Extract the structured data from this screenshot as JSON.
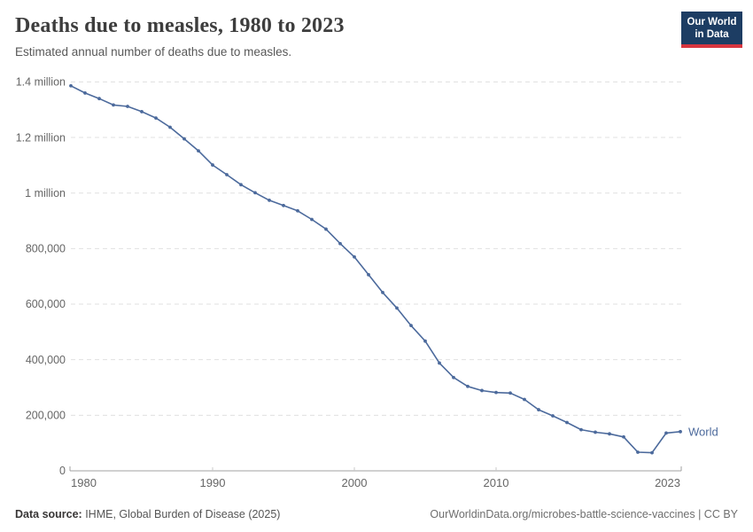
{
  "header": {
    "title": "Deaths due to measles, 1980 to 2023",
    "subtitle": "Estimated annual number of deaths due to measles."
  },
  "logo": {
    "line1": "Our World",
    "line2": "in Data",
    "bg_color": "#1d3d63",
    "accent_color": "#d8353f"
  },
  "chart_data": {
    "type": "line",
    "title": "Deaths due to measles, 1980 to 2023",
    "subtitle": "Estimated annual number of deaths due to measles.",
    "xlabel": "",
    "ylabel": "",
    "xlim": [
      1980,
      2023
    ],
    "ylim": [
      0,
      1400000
    ],
    "grid": "horizontal-dashed",
    "legend_position": "end-of-line",
    "x_ticks": [
      1980,
      1990,
      2000,
      2010,
      2023
    ],
    "y_ticks": [
      {
        "value": 0,
        "label": "0"
      },
      {
        "value": 200000,
        "label": "200,000"
      },
      {
        "value": 400000,
        "label": "400,000"
      },
      {
        "value": 600000,
        "label": "600,000"
      },
      {
        "value": 800000,
        "label": "800,000"
      },
      {
        "value": 1000000,
        "label": "1 million"
      },
      {
        "value": 1200000,
        "label": "1.2 million"
      },
      {
        "value": 1400000,
        "label": "1.4 million"
      }
    ],
    "series": [
      {
        "name": "World",
        "color": "#4c6a9c",
        "x": [
          1980,
          1981,
          1982,
          1983,
          1984,
          1985,
          1986,
          1987,
          1988,
          1989,
          1990,
          1991,
          1992,
          1993,
          1994,
          1995,
          1996,
          1997,
          1998,
          1999,
          2000,
          2001,
          2002,
          2003,
          2004,
          2005,
          2006,
          2007,
          2008,
          2009,
          2010,
          2011,
          2012,
          2013,
          2014,
          2015,
          2016,
          2017,
          2018,
          2019,
          2020,
          2021,
          2022,
          2023
        ],
        "values": [
          1386000,
          1360000,
          1340000,
          1317000,
          1312000,
          1293000,
          1270000,
          1237000,
          1195000,
          1152000,
          1101000,
          1066000,
          1030000,
          1001000,
          974000,
          955000,
          936000,
          905000,
          870000,
          818000,
          770000,
          706000,
          642000,
          586000,
          523000,
          467000,
          388000,
          336000,
          304000,
          289000,
          282000,
          280000,
          257000,
          220000,
          198000,
          174000,
          148000,
          139000,
          133000,
          122000,
          67000,
          65000,
          136000,
          141000
        ]
      }
    ]
  },
  "footer": {
    "source_label": "Data source:",
    "source_text": " IHME, Global Burden of Disease (2025)",
    "credit": "OurWorldinData.org/microbes-battle-science-vaccines | CC BY"
  }
}
